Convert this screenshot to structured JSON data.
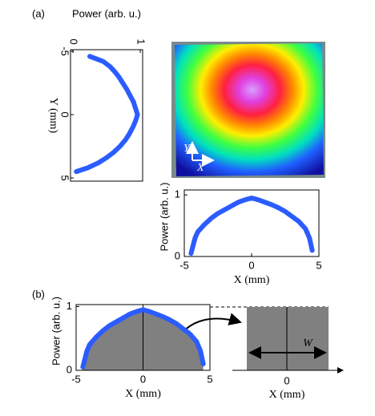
{
  "panel_labels": [
    "(a)",
    "(b)"
  ],
  "image": {
    "x_label": "X",
    "y_label": "Y"
  },
  "chart_data": [
    {
      "type": "vline",
      "xlabel": "Power (arb. u.)",
      "ylabel": "Y (mm)",
      "xlim": [
        0,
        1
      ],
      "xticks": [
        0,
        1
      ],
      "ylim": [
        -5,
        5
      ],
      "yticks": [
        -5,
        0,
        5
      ],
      "color": "#2b5cff",
      "y": [
        -4.6,
        -4.2,
        -3.8,
        -3.4,
        -3,
        -2.5,
        -2,
        -1.5,
        -1,
        -0.5,
        0,
        0.5,
        1,
        1.5,
        2,
        2.5,
        3,
        3.4,
        3.8,
        4.2,
        4.5
      ],
      "values": [
        0.25,
        0.45,
        0.55,
        0.62,
        0.68,
        0.74,
        0.8,
        0.85,
        0.9,
        0.93,
        0.96,
        0.93,
        0.89,
        0.84,
        0.78,
        0.7,
        0.6,
        0.5,
        0.38,
        0.22,
        0.05
      ]
    },
    {
      "type": "line",
      "xlabel": "X (mm)",
      "ylabel": "Power (arb. u.)",
      "xlim": [
        -5,
        5
      ],
      "xticks": [
        -5,
        0,
        5
      ],
      "ylim": [
        0,
        1.08
      ],
      "yticks": [
        0,
        1
      ],
      "color": "#2b5cff",
      "x": [
        -4.5,
        -4.2,
        -4,
        -3.5,
        -3,
        -2.5,
        -2,
        -1.5,
        -1,
        -0.5,
        0,
        0.5,
        1,
        1.5,
        2,
        2.5,
        3,
        3.5,
        4,
        4.3,
        4.5
      ],
      "values": [
        0.05,
        0.3,
        0.4,
        0.52,
        0.62,
        0.7,
        0.76,
        0.82,
        0.88,
        0.92,
        0.95,
        0.92,
        0.88,
        0.84,
        0.79,
        0.73,
        0.65,
        0.57,
        0.45,
        0.3,
        0.1
      ]
    },
    {
      "type": "area",
      "xlabel": "X (mm)",
      "ylabel": "Power (arb. u.)",
      "xlim": [
        -5,
        5
      ],
      "xticks": [
        -5,
        0,
        5
      ],
      "ylim": [
        0,
        1.03
      ],
      "yticks": [
        0,
        1
      ],
      "color": "#2b5cff",
      "x": [
        -4.5,
        -4.2,
        -4,
        -3.5,
        -3,
        -2.5,
        -2,
        -1.5,
        -1,
        -0.5,
        0,
        0.5,
        1,
        1.5,
        2,
        2.5,
        3,
        3.5,
        4,
        4.3,
        4.5
      ],
      "values": [
        0.05,
        0.3,
        0.4,
        0.52,
        0.62,
        0.7,
        0.76,
        0.82,
        0.88,
        0.92,
        0.95,
        0.92,
        0.88,
        0.84,
        0.79,
        0.73,
        0.65,
        0.57,
        0.45,
        0.3,
        0.1
      ]
    },
    {
      "type": "tophat",
      "xlabel": "X (mm)",
      "xticks": [
        0
      ],
      "annotation": "W"
    }
  ]
}
